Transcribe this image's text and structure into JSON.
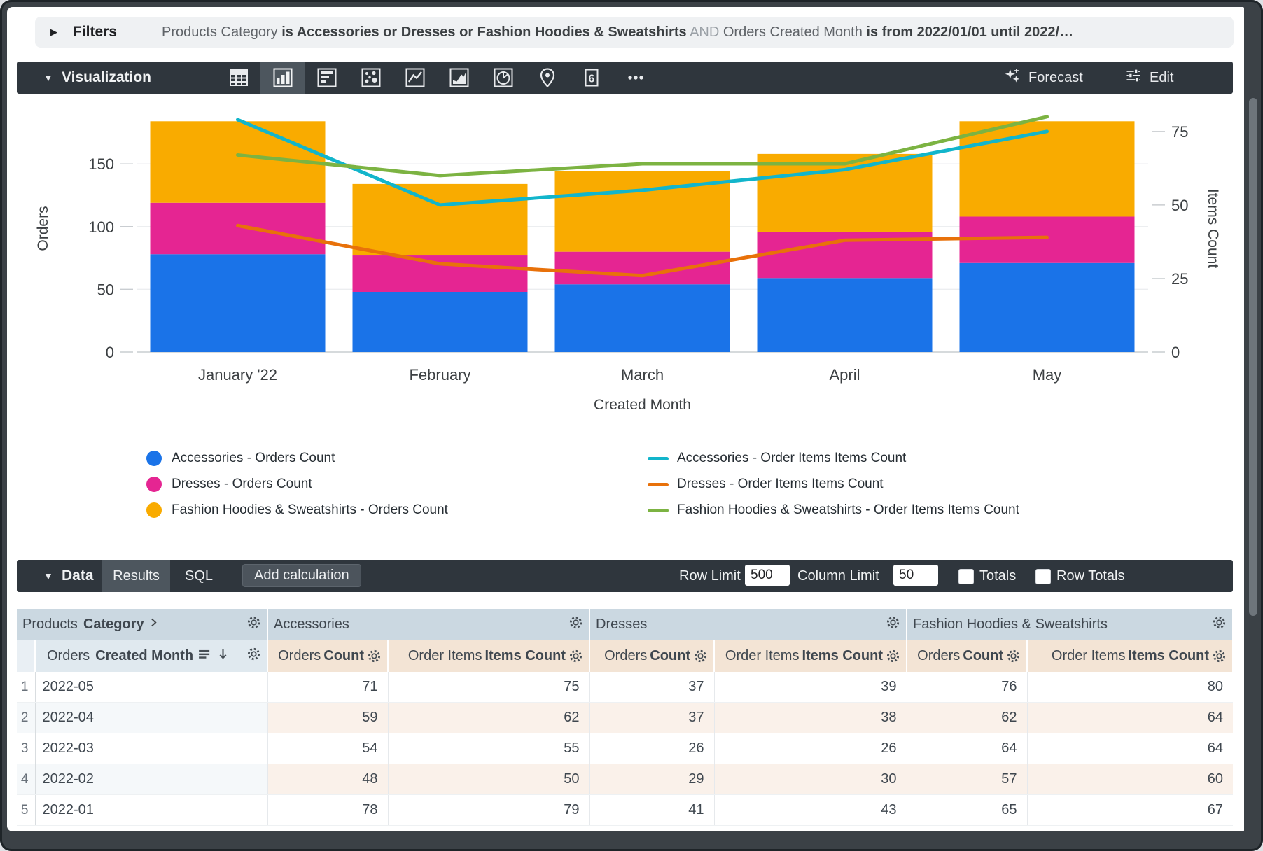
{
  "filters_bar": {
    "label": "Filters",
    "expression": [
      {
        "text": "Products Category ",
        "style": "dim"
      },
      {
        "text": "is Accessories or Dresses or Fashion Hoodies & Sweatshirts",
        "style": "bold"
      },
      {
        "text": " AND ",
        "style": "faint"
      },
      {
        "text": "Orders Created Month ",
        "style": "dim"
      },
      {
        "text": "is from 2022/01/01 until 2022/…",
        "style": "bold"
      }
    ]
  },
  "viz_bar": {
    "label": "Visualization",
    "icons": [
      {
        "name": "table-chart-icon",
        "selected": false
      },
      {
        "name": "column-chart-icon",
        "selected": true
      },
      {
        "name": "bar-chart-icon",
        "selected": false
      },
      {
        "name": "scatter-chart-icon",
        "selected": false
      },
      {
        "name": "line-chart-icon",
        "selected": false
      },
      {
        "name": "area-chart-icon",
        "selected": false
      },
      {
        "name": "pie-chart-icon",
        "selected": false
      },
      {
        "name": "map-pin-icon",
        "selected": false
      },
      {
        "name": "single-value-icon",
        "selected": false,
        "glyph": "6"
      },
      {
        "name": "more-options-icon",
        "selected": false
      }
    ],
    "forecast_label": "Forecast",
    "edit_label": "Edit"
  },
  "chart_data": {
    "type": "combo-stacked-bar-line",
    "x": [
      "January '22",
      "February",
      "March",
      "April",
      "May"
    ],
    "xlabel": "Created Month",
    "left_axis": {
      "label": "Orders",
      "ticks": [
        0,
        50,
        100,
        150
      ],
      "max": 197
    },
    "right_axis": {
      "label": "Items Count",
      "ticks": [
        0,
        25,
        50,
        75
      ],
      "max": 84
    },
    "bar_series": [
      {
        "name": "Accessories - Orders Count",
        "color": "#1a73e8",
        "values": [
          78,
          48,
          54,
          59,
          71
        ]
      },
      {
        "name": "Dresses - Orders Count",
        "color": "#e52592",
        "values": [
          41,
          29,
          26,
          37,
          37
        ]
      },
      {
        "name": "Fashion Hoodies & Sweatshirts - Orders Count",
        "color": "#f9ab00",
        "values": [
          65,
          57,
          64,
          62,
          76
        ]
      }
    ],
    "line_series": [
      {
        "name": "Accessories - Order Items Items Count",
        "color": "#12b5cb",
        "values": [
          79,
          50,
          55,
          62,
          75
        ]
      },
      {
        "name": "Dresses - Order Items Items Count",
        "color": "#e8710a",
        "values": [
          43,
          30,
          26,
          38,
          39
        ]
      },
      {
        "name": "Fashion Hoodies & Sweatshirts - Order Items Items Count",
        "color": "#7cb342",
        "values": [
          67,
          60,
          64,
          64,
          80
        ]
      }
    ],
    "legend_position": "bottom"
  },
  "data_bar": {
    "label": "Data",
    "tabs": [
      {
        "label": "Results",
        "active": true
      },
      {
        "label": "SQL",
        "active": false
      }
    ],
    "add_calculation_label": "Add calculation",
    "row_limit_label": "Row Limit",
    "row_limit_value": "500",
    "column_limit_label": "Column Limit",
    "column_limit_value": "50",
    "totals_label": "Totals",
    "totals_checked": false,
    "row_totals_label": "Row Totals",
    "row_totals_checked": false
  },
  "table": {
    "dimension_group": {
      "prefix": "Products ",
      "bold": "Category"
    },
    "groups": [
      "Accessories",
      "Dresses",
      "Fashion Hoodies & Sweatshirts"
    ],
    "dimension_column": {
      "prefix": "Orders ",
      "bold": "Created Month"
    },
    "measure_columns": [
      {
        "prefix": "Orders ",
        "bold": "Count"
      },
      {
        "prefix": "Order Items ",
        "bold": "Items Count"
      }
    ],
    "rows": [
      {
        "num": "1",
        "month": "2022-05",
        "values": [
          71,
          75,
          37,
          39,
          76,
          80
        ]
      },
      {
        "num": "2",
        "month": "2022-04",
        "values": [
          59,
          62,
          37,
          38,
          62,
          64
        ]
      },
      {
        "num": "3",
        "month": "2022-03",
        "values": [
          54,
          55,
          26,
          26,
          64,
          64
        ]
      },
      {
        "num": "4",
        "month": "2022-02",
        "values": [
          48,
          50,
          29,
          30,
          57,
          60
        ]
      },
      {
        "num": "5",
        "month": "2022-01",
        "values": [
          78,
          79,
          41,
          43,
          65,
          67
        ]
      }
    ]
  }
}
